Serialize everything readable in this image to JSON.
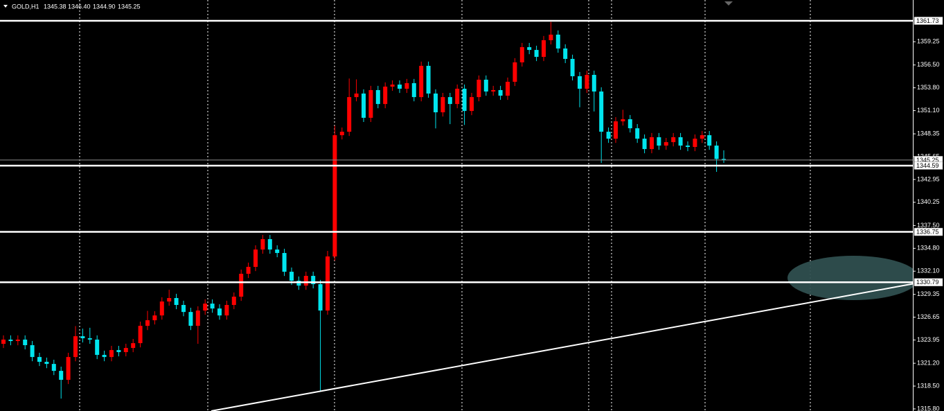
{
  "header": {
    "symbol": "GOLD,H1",
    "ohlc": [
      "1345.38",
      "1346.40",
      "1344.90",
      "1345.25"
    ]
  },
  "chart_data": {
    "type": "candlestick",
    "open": [
      1323.5,
      1324.0,
      1323.83,
      1324.0,
      1323.34,
      1321.94,
      1321.37,
      1321.12,
      1320.3,
      1319.24,
      1321.94,
      1324.4,
      1324.16,
      1324.0,
      1322.19,
      1321.94,
      1322.76,
      1322.52,
      1323.01,
      1323.58,
      1325.63,
      1326.29,
      1326.86,
      1328.51,
      1328.92,
      1328.1,
      1327.27,
      1325.63,
      1327.44,
      1328.26,
      1327.68,
      1326.86,
      1328.1,
      1329.08,
      1331.79,
      1332.61,
      1334.66,
      1335.89,
      1334.66,
      1334.25,
      1332.03,
      1330.97,
      1330.39,
      1331.54,
      1330.56,
      1327.44,
      1333.84,
      1348.19,
      1348.6,
      1352.7,
      1353.12,
      1350.25,
      1353.53,
      1351.88,
      1353.94,
      1354.18,
      1353.69,
      1354.35,
      1352.7,
      1356.4,
      1353.12,
      1350.9,
      1352.7,
      1351.88,
      1353.69,
      1351.06,
      1352.7,
      1354.76,
      1353.36,
      1353.53,
      1352.87,
      1354.51,
      1356.81,
      1358.61,
      1358.28,
      1357.46,
      1359.43,
      1360.09,
      1358.45,
      1357.22,
      1355.17,
      1353.69,
      1355.33,
      1353.36,
      1348.6,
      1347.78,
      1349.83,
      1350.08,
      1349.01,
      1347.78,
      1346.55,
      1347.95,
      1346.96,
      1347.37,
      1347.95,
      1346.96,
      1346.8,
      1347.78,
      1348.19,
      1346.96,
      1345.38
    ],
    "high": [
      1324.5,
      1324.5,
      1324.5,
      1324.5,
      1323.84,
      1322.44,
      1321.87,
      1321.62,
      1320.8,
      1322.44,
      1325.6,
      1325.3,
      1325.4,
      1324.5,
      1322.69,
      1323.26,
      1323.26,
      1323.51,
      1324.08,
      1326.13,
      1327.4,
      1327.36,
      1329.01,
      1329.9,
      1329.42,
      1328.6,
      1327.77,
      1327.94,
      1328.76,
      1328.76,
      1328.18,
      1328.6,
      1329.58,
      1332.29,
      1333.11,
      1335.16,
      1336.39,
      1336.39,
      1335.16,
      1334.75,
      1332.53,
      1331.47,
      1332.04,
      1332.04,
      1331.06,
      1334.5,
      1349.3,
      1349.1,
      1354.9,
      1354.8,
      1353.62,
      1354.03,
      1354.03,
      1354.44,
      1354.68,
      1354.68,
      1354.85,
      1354.85,
      1356.9,
      1356.9,
      1353.62,
      1353.2,
      1353.2,
      1354.19,
      1354.19,
      1353.2,
      1355.26,
      1355.26,
      1354.03,
      1354.03,
      1355.01,
      1357.31,
      1359.11,
      1359.11,
      1358.78,
      1359.93,
      1361.6,
      1360.59,
      1358.95,
      1357.72,
      1355.67,
      1355.83,
      1355.83,
      1353.86,
      1349.1,
      1350.33,
      1351.2,
      1350.58,
      1349.51,
      1348.28,
      1348.45,
      1348.45,
      1347.87,
      1348.45,
      1348.45,
      1347.46,
      1348.28,
      1348.69,
      1348.69,
      1347.46,
      1346.4
    ],
    "low": [
      1323.0,
      1323.33,
      1323.33,
      1322.84,
      1321.44,
      1320.87,
      1320.62,
      1319.8,
      1317.02,
      1318.74,
      1321.44,
      1323.66,
      1323.5,
      1321.69,
      1321.44,
      1321.44,
      1322.02,
      1322.02,
      1322.51,
      1323.08,
      1325.13,
      1325.79,
      1326.36,
      1328.01,
      1327.6,
      1326.77,
      1325.13,
      1323.5,
      1326.94,
      1327.18,
      1326.36,
      1326.36,
      1327.6,
      1328.58,
      1331.29,
      1332.11,
      1334.16,
      1334.16,
      1333.75,
      1331.53,
      1330.47,
      1329.89,
      1329.89,
      1330.06,
      1317.84,
      1326.94,
      1333.34,
      1347.69,
      1348.1,
      1352.2,
      1349.75,
      1349.75,
      1351.38,
      1351.38,
      1353.44,
      1353.19,
      1353.19,
      1352.2,
      1352.2,
      1352.62,
      1349.0,
      1350.4,
      1349.5,
      1351.38,
      1349.4,
      1350.56,
      1352.2,
      1352.86,
      1352.86,
      1352.37,
      1352.37,
      1354.01,
      1356.31,
      1357.78,
      1356.96,
      1356.96,
      1358.93,
      1357.95,
      1356.72,
      1354.67,
      1351.5,
      1353.19,
      1351.0,
      1344.9,
      1347.28,
      1347.28,
      1349.33,
      1348.51,
      1347.28,
      1346.05,
      1346.05,
      1346.46,
      1346.46,
      1346.87,
      1346.46,
      1346.3,
      1346.3,
      1347.28,
      1346.46,
      1343.85,
      1344.9
    ],
    "close": [
      1324.0,
      1323.83,
      1324.0,
      1323.34,
      1321.94,
      1321.37,
      1321.12,
      1320.3,
      1319.24,
      1321.94,
      1324.4,
      1324.16,
      1324.0,
      1322.19,
      1321.94,
      1322.76,
      1322.52,
      1323.01,
      1323.58,
      1325.63,
      1326.29,
      1326.86,
      1328.51,
      1328.92,
      1328.1,
      1327.27,
      1325.63,
      1327.44,
      1328.26,
      1327.68,
      1326.86,
      1328.1,
      1329.08,
      1331.79,
      1332.61,
      1334.66,
      1335.89,
      1334.66,
      1334.25,
      1332.03,
      1330.97,
      1330.39,
      1331.54,
      1330.56,
      1327.44,
      1333.84,
      1348.19,
      1348.6,
      1352.7,
      1353.12,
      1350.25,
      1353.53,
      1351.88,
      1353.94,
      1354.18,
      1353.69,
      1354.35,
      1352.7,
      1356.4,
      1353.12,
      1350.9,
      1352.7,
      1351.88,
      1353.69,
      1351.06,
      1352.7,
      1354.76,
      1353.36,
      1353.53,
      1352.87,
      1354.51,
      1356.81,
      1358.61,
      1358.28,
      1357.46,
      1359.43,
      1360.09,
      1358.45,
      1357.22,
      1355.17,
      1353.69,
      1355.33,
      1353.36,
      1348.6,
      1347.78,
      1349.83,
      1350.08,
      1349.01,
      1347.78,
      1346.55,
      1347.95,
      1346.96,
      1347.37,
      1347.95,
      1346.96,
      1346.8,
      1347.78,
      1348.19,
      1346.96,
      1345.38,
      1345.25
    ],
    "up_color": "#ff0000",
    "down_color": "#00e5ee",
    "ylim": [
      1315.55,
      1364.19
    ],
    "yticks": [
      1359.25,
      {
        "value": 1356.5,
        "label": "1356.50"
      },
      {
        "value": 1353.8,
        "label": "1353.80"
      },
      {
        "value": 1351.1,
        "label": "1351.10"
      },
      1348.35,
      1345.65,
      1342.95,
      1340.25,
      {
        "value": 1337.5,
        "label": "1337.50"
      },
      {
        "value": 1334.8,
        "label": "1334.80"
      },
      {
        "value": 1332.1,
        "label": "1332.10"
      },
      1329.35,
      1326.65,
      1323.95,
      {
        "value": 1321.2,
        "label": "1321.20"
      },
      {
        "value": 1318.5,
        "label": "1318.50"
      },
      {
        "value": 1315.8,
        "label": "1315.80"
      }
    ],
    "levels": [
      1361.73,
      1344.59,
      1336.75,
      1330.79
    ],
    "current_price": 1345.25,
    "trendline": [
      1315.55,
      1330.6
    ]
  }
}
